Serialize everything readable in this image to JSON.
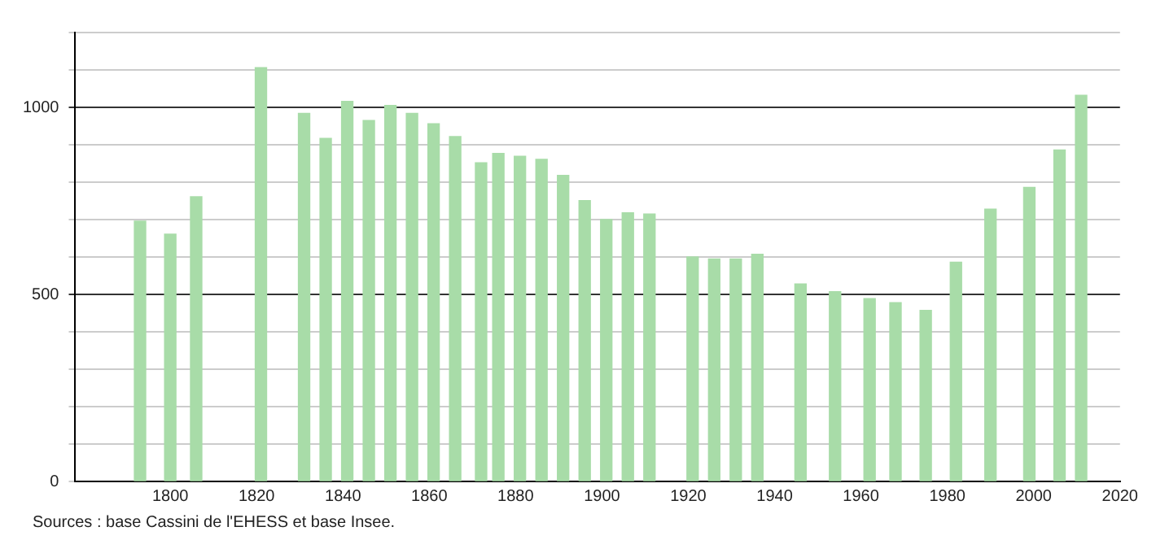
{
  "chart_data": {
    "type": "bar",
    "x": [
      1793,
      1800,
      1806,
      1821,
      1831,
      1836,
      1841,
      1846,
      1851,
      1856,
      1861,
      1866,
      1872,
      1876,
      1881,
      1886,
      1891,
      1896,
      1901,
      1906,
      1911,
      1921,
      1926,
      1931,
      1936,
      1946,
      1954,
      1962,
      1968,
      1975,
      1982,
      1990,
      1999,
      2006,
      2011
    ],
    "values": [
      696,
      661,
      761,
      1106,
      984,
      917,
      1016,
      965,
      1005,
      984,
      956,
      922,
      852,
      877,
      869,
      861,
      818,
      751,
      700,
      718,
      715,
      600,
      595,
      595,
      607,
      528,
      507,
      489,
      478,
      457,
      586,
      728,
      786,
      886,
      1032
    ],
    "color": "#a8dca8",
    "xlim": [
      1778,
      2020
    ],
    "xticks": [
      1800,
      1820,
      1840,
      1860,
      1880,
      1900,
      1920,
      1940,
      1960,
      1980,
      2000,
      2020
    ],
    "ylim": [
      0,
      1200
    ],
    "yticks": [
      0,
      {
        "value": 100,
        "label": null
      },
      {
        "value": 200,
        "label": null
      },
      {
        "value": 300,
        "label": null
      },
      {
        "value": 400,
        "label": null
      },
      500,
      {
        "value": 600,
        "label": null
      },
      {
        "value": 700,
        "label": null
      },
      {
        "value": 800,
        "label": null
      },
      {
        "value": 900,
        "label": null
      },
      1000,
      {
        "value": 1100,
        "label": null
      },
      {
        "value": 1200,
        "label": null
      }
    ],
    "grid": "y",
    "legend": false,
    "annotations": [
      "Sources : base Cassini de l'EHESS et base Insee."
    ]
  }
}
